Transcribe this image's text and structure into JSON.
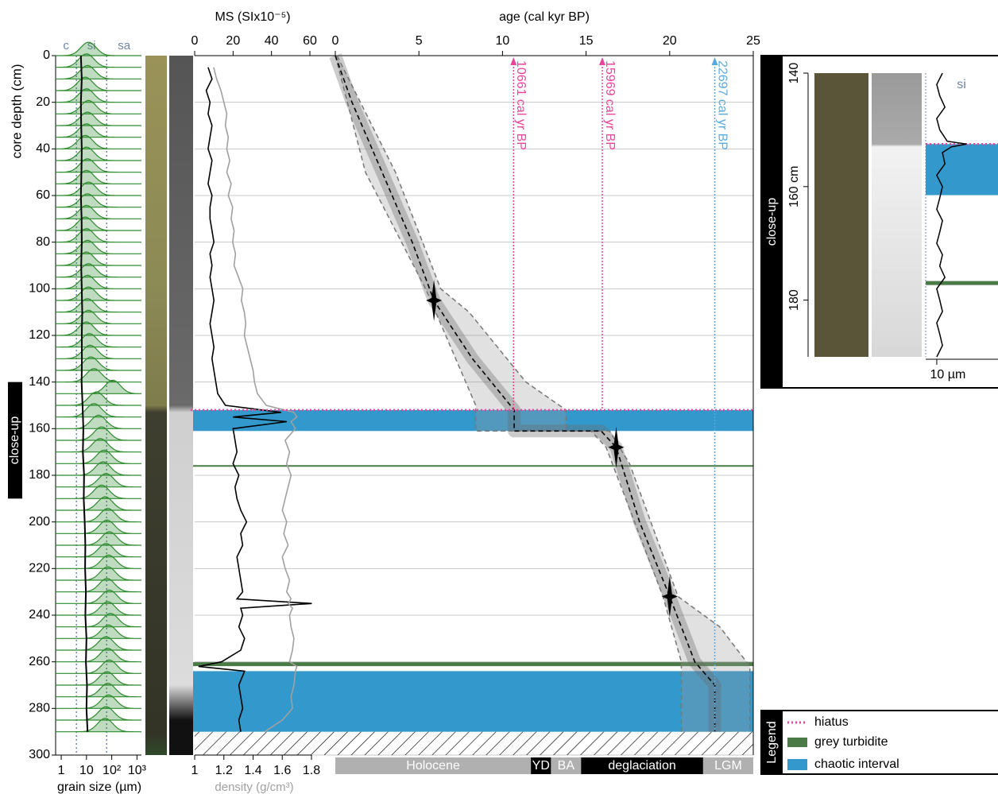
{
  "chart_data": [
    {
      "type": "ridgeline",
      "ylabel": "core depth (cm)",
      "xlabel": "grain size (µm)",
      "ylim": [
        0,
        300
      ],
      "yticks": [
        0,
        20,
        40,
        60,
        80,
        100,
        120,
        140,
        160,
        180,
        200,
        220,
        240,
        260,
        280,
        300
      ],
      "log_x": true,
      "xlim": [
        0.6,
        1500
      ],
      "xticks": [
        1,
        10,
        {
          "value": 100,
          "label": "10²"
        },
        {
          "value": 1000,
          "label": "10³"
        }
      ],
      "class_labels": [
        "c",
        "si",
        "sa"
      ],
      "class_limits": [
        4,
        63
      ],
      "color": "#2d8a2d",
      "samples": {
        "depth": [
          0,
          5,
          10,
          15,
          20,
          25,
          30,
          35,
          40,
          45,
          50,
          55,
          60,
          65,
          70,
          75,
          80,
          85,
          90,
          95,
          100,
          105,
          110,
          115,
          120,
          125,
          130,
          135,
          140,
          145,
          150,
          155,
          160,
          165,
          170,
          175,
          180,
          185,
          190,
          195,
          200,
          205,
          210,
          215,
          220,
          225,
          230,
          235,
          240,
          245,
          250,
          255,
          260,
          265,
          270,
          275,
          280,
          285,
          290
        ],
        "mode": [
          12,
          10,
          11,
          9,
          10,
          12,
          11,
          10,
          9,
          10,
          11,
          10,
          12,
          11,
          10,
          9,
          10,
          11,
          10,
          12,
          11,
          12,
          11,
          12,
          10,
          13,
          14,
          15,
          20,
          110,
          25,
          20,
          30,
          40,
          35,
          50,
          45,
          60,
          40,
          55,
          70,
          65,
          80,
          60,
          75,
          70,
          65,
          80,
          70,
          90,
          75,
          60,
          70,
          80,
          65,
          70,
          75,
          60,
          55
        ]
      },
      "median": {
        "depth": [
          0,
          10,
          20,
          30,
          40,
          50,
          60,
          70,
          80,
          90,
          100,
          110,
          120,
          130,
          140,
          150,
          160,
          170,
          180,
          190,
          200,
          210,
          220,
          230,
          240,
          250,
          260,
          270,
          280,
          290
        ],
        "values": [
          6,
          6.5,
          6,
          6.2,
          6.5,
          6.3,
          6,
          6.4,
          6.5,
          6.2,
          6.5,
          6.8,
          6.5,
          6.6,
          6.4,
          7,
          7.5,
          7.2,
          8,
          7.8,
          8.5,
          9,
          8.8,
          9.5,
          9,
          10,
          9.5,
          10.5,
          10,
          11
        ]
      }
    },
    {
      "type": "line",
      "xlabel": "MS (SIx10⁻⁵)",
      "xlim": [
        0,
        60
      ],
      "xticks": [
        0,
        20,
        40,
        60
      ],
      "x2label": "density (g/cm³)",
      "x2lim": [
        1,
        1.8
      ],
      "x2ticks": [
        1,
        1.2,
        1.4,
        1.6,
        1.8
      ],
      "depth": [
        5,
        10,
        15,
        20,
        25,
        30,
        35,
        40,
        45,
        50,
        55,
        60,
        65,
        70,
        75,
        80,
        85,
        90,
        95,
        100,
        105,
        110,
        115,
        120,
        125,
        130,
        135,
        140,
        145,
        150,
        153,
        155,
        157,
        160,
        165,
        170,
        175,
        180,
        185,
        190,
        195,
        200,
        205,
        210,
        215,
        220,
        225,
        230,
        233,
        235,
        237,
        240,
        245,
        250,
        255,
        260,
        262,
        264,
        270,
        275,
        280,
        285,
        290
      ],
      "series": [
        {
          "color": "#000000",
          "values": [
            7,
            9,
            6,
            8,
            7,
            9,
            8,
            7,
            9,
            8,
            7,
            9,
            8,
            8,
            9,
            10,
            8,
            9,
            8,
            9,
            10,
            9,
            8,
            9,
            10,
            9,
            10,
            11,
            12,
            16,
            45,
            20,
            48,
            20,
            21,
            22,
            20,
            23,
            21,
            22,
            24,
            27,
            24,
            25,
            22,
            23,
            24,
            25,
            22,
            61,
            24,
            25,
            23,
            26,
            24,
            14,
            2,
            26,
            23,
            24,
            25,
            23,
            24
          ]
        },
        {
          "color": "#a0a0a0",
          "axis": "x2",
          "values": [
            1.13,
            1.15,
            1.18,
            1.2,
            1.22,
            1.21,
            1.23,
            1.22,
            1.24,
            1.22,
            1.25,
            1.23,
            1.26,
            1.25,
            1.27,
            1.26,
            1.28,
            1.27,
            1.3,
            1.33,
            1.32,
            1.34,
            1.35,
            1.34,
            1.36,
            1.38,
            1.4,
            1.41,
            1.43,
            1.49,
            1.68,
            1.7,
            1.66,
            1.69,
            1.62,
            1.65,
            1.63,
            1.66,
            1.64,
            1.62,
            1.6,
            1.63,
            1.61,
            1.64,
            1.6,
            1.62,
            1.65,
            1.63,
            1.66,
            1.64,
            1.67,
            1.65,
            1.66,
            1.68,
            1.67,
            1.65,
            1.7,
            1.69,
            1.68,
            1.66,
            1.67,
            1.6,
            1.48
          ]
        }
      ]
    },
    {
      "type": "age-model",
      "xlabel": "age (cal kyr BP)",
      "xlim": [
        0,
        25
      ],
      "xticks": [
        0,
        5,
        10,
        15,
        20,
        25
      ],
      "grid": true,
      "median": {
        "depth": [
          0,
          20,
          50,
          80,
          105,
          130,
          152,
          161,
          161,
          168,
          200,
          232,
          260,
          270,
          290
        ],
        "age": [
          0,
          1.0,
          2.8,
          4.6,
          5.9,
          8.2,
          10.7,
          10.7,
          15.9,
          16.8,
          18.2,
          20,
          21.5,
          22.7,
          22.7
        ]
      },
      "lower": {
        "depth": [
          0,
          50,
          100,
          120,
          150,
          161,
          161,
          168,
          232,
          260,
          290
        ],
        "age": [
          0,
          1.8,
          5.4,
          6.6,
          8.4,
          8.4,
          15.3,
          16.2,
          19.6,
          20.7,
          20.7
        ]
      },
      "upper": {
        "depth": [
          0,
          50,
          100,
          110,
          140,
          152,
          161,
          161,
          175,
          232,
          245,
          262,
          290
        ],
        "age": [
          0.1,
          3.6,
          6.3,
          8,
          11.4,
          13.8,
          13.8,
          16.4,
          17.6,
          20.5,
          23,
          24.8,
          24.8
        ]
      },
      "dates": {
        "depth": [
          105,
          168,
          232
        ],
        "age": [
          5.9,
          16.8,
          20
        ]
      },
      "annotations": [
        {
          "label": "10661 cal yr BP",
          "value": 10.661,
          "color": "#e8449a"
        },
        {
          "label": "15969 cal yr BP",
          "value": 15.969,
          "color": "#e8449a"
        },
        {
          "label": "22697 cal yr BP",
          "value": 22.697,
          "color": "#5aa9dd"
        }
      ],
      "hiatus_depth": 152,
      "hiatus_color": "#e8449a",
      "chaotic_intervals": [
        [
          152,
          161
        ],
        [
          264,
          290
        ]
      ],
      "chaotic_color": "#3399cc",
      "turbidites": [
        176,
        261
      ],
      "turbidite_color": "#4a7a45",
      "periods": [
        {
          "name": "Holocene",
          "start": 0,
          "end": 11.7
        },
        {
          "name": "YD",
          "start": 11.7,
          "end": 12.9
        },
        {
          "name": "BA",
          "start": 12.9,
          "end": 14.7
        },
        {
          "name": "deglaciation",
          "start": 14.7,
          "end": 22
        },
        {
          "name": "LGM",
          "start": 22,
          "end": 25
        }
      ],
      "legend": {
        "title": "Legend",
        "items": [
          "hiatus",
          "grey turbidite",
          "chaotic interval"
        ]
      }
    },
    {
      "type": "closeup",
      "ylabel": "close-up",
      "ylim": [
        140,
        190
      ],
      "yticks": [
        140,
        {
          "value": 160,
          "label": "160 cm"
        },
        180
      ],
      "xlim": [
        7,
        70
      ],
      "xticks": [
        {
          "value": 10,
          "label": "10 µm"
        }
      ],
      "class_label": "si",
      "chaotic_interval": [
        152.5,
        161.5
      ],
      "turbidite": 177,
      "hiatus_depth": 152.5,
      "depth": [
        140,
        142,
        144,
        146,
        148,
        150,
        152,
        152.5,
        153,
        154,
        156,
        158,
        160,
        162,
        164,
        166,
        168,
        170,
        172,
        174,
        176,
        178,
        180,
        182,
        184,
        186,
        188,
        190
      ],
      "values": [
        12,
        10,
        11,
        13,
        10,
        11,
        14,
        26,
        16,
        12,
        13,
        10,
        12,
        11,
        10,
        12,
        11,
        10,
        12,
        11,
        13,
        10,
        11,
        12,
        10,
        11,
        12,
        10
      ]
    }
  ]
}
